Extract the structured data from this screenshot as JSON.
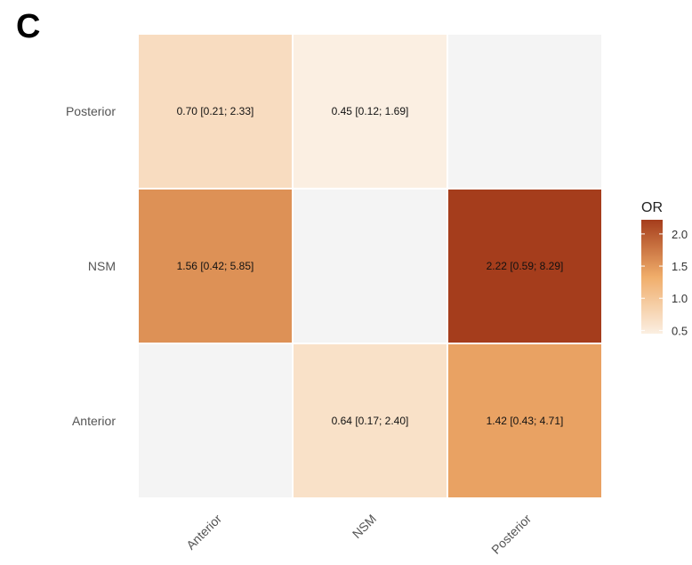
{
  "panel_label": "C",
  "chart_data": {
    "type": "heatmap",
    "title": "",
    "xlabel": "",
    "ylabel": "",
    "x_categories": [
      "Anterior",
      "NSM",
      "Posterior"
    ],
    "y_categories": [
      "Anterior",
      "NSM",
      "Posterior"
    ],
    "cells": [
      {
        "x": "Anterior",
        "y": "Posterior",
        "value": 0.7,
        "label": "0.70 [0.21; 2.33]"
      },
      {
        "x": "NSM",
        "y": "Posterior",
        "value": 0.45,
        "label": "0.45 [0.12; 1.69]"
      },
      {
        "x": "Posterior",
        "y": "Posterior",
        "value": null,
        "label": ""
      },
      {
        "x": "Anterior",
        "y": "NSM",
        "value": 1.56,
        "label": "1.56 [0.42; 5.85]"
      },
      {
        "x": "NSM",
        "y": "NSM",
        "value": null,
        "label": ""
      },
      {
        "x": "Posterior",
        "y": "NSM",
        "value": 2.22,
        "label": "2.22 [0.59; 8.29]"
      },
      {
        "x": "Anterior",
        "y": "Anterior",
        "value": null,
        "label": ""
      },
      {
        "x": "NSM",
        "y": "Anterior",
        "value": 0.64,
        "label": "0.64 [0.17; 2.40]"
      },
      {
        "x": "Posterior",
        "y": "Anterior",
        "value": 1.42,
        "label": "1.42 [0.43; 4.71]"
      }
    ],
    "legend": {
      "title": "OR",
      "ticks": [
        {
          "value": 2.0,
          "label": "2.0"
        },
        {
          "value": 1.5,
          "label": "1.5"
        },
        {
          "value": 1.0,
          "label": "1.0"
        },
        {
          "value": 0.5,
          "label": "0.5"
        }
      ],
      "range": [
        0.45,
        2.22
      ],
      "placement": "right"
    },
    "colors": {
      "low": "#fbefe2",
      "mid": "#f0ad6a",
      "high": "#a53d1c",
      "na": "#f4f4f4",
      "cell_border": "#ffffff"
    }
  }
}
